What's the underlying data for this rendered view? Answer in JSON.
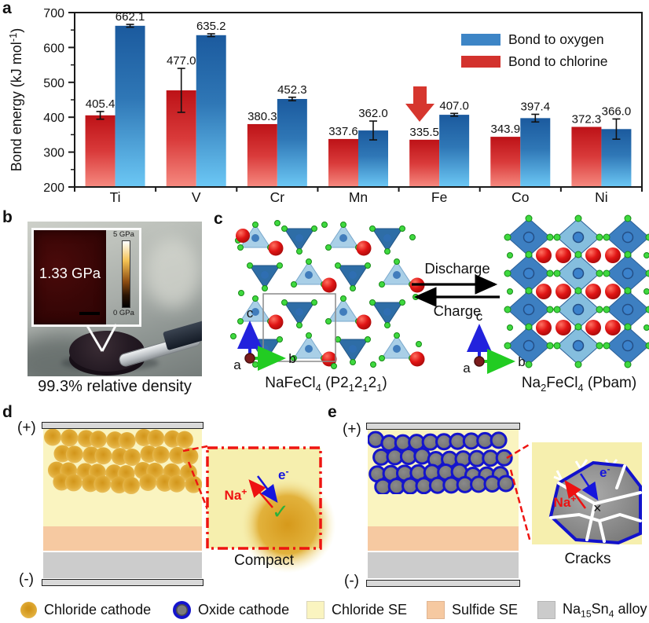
{
  "panels": {
    "a": {
      "label": "a"
    },
    "b": {
      "label": "b",
      "inset_value": "1.33 GPa",
      "scale_max": "5 GPa",
      "scale_min": "0 GPa",
      "caption": "99.3% relative density"
    },
    "c": {
      "label": "c",
      "left_formula": "NaFeCl_{4} (P2_{1}2_{1}2_{1})",
      "right_formula": "Na_{2}FeCl_{4} (Pbam)",
      "discharge_label": "Discharge",
      "charge_label": "Charge",
      "axis_a": "a",
      "axis_b": "b",
      "axis_c": "c"
    },
    "d": {
      "label": "d",
      "plus": "(+)",
      "minus": "(-)",
      "na_label": "Na^{+}",
      "e_label": "e^{-}",
      "check": "✓",
      "caption": "Compact"
    },
    "e": {
      "label": "e",
      "plus": "(+)",
      "minus": "(-)",
      "na_label": "Na^{+}",
      "e_label": "e^{-}",
      "cross": "×",
      "caption": "Cracks"
    }
  },
  "chart_data": {
    "type": "bar",
    "title": "",
    "ylabel": "Bond energy (kJ mol^{-1})",
    "ylim": [
      200,
      700
    ],
    "ytick_major": 100,
    "ytick_minor": 50,
    "grid": false,
    "legend_position": "top-right",
    "categories": [
      "Ti",
      "V",
      "Cr",
      "Mn",
      "Fe",
      "Co",
      "Ni"
    ],
    "series": [
      {
        "name": "Bond to chlorine",
        "values": [
          "405.4",
          "477.0",
          "380.3",
          "337.6",
          "335.5",
          "343.9",
          "372.3"
        ],
        "errors": [
          11,
          63,
          0,
          0,
          0,
          0,
          0
        ]
      },
      {
        "name": "Bond to oxygen",
        "values": [
          "662.1",
          "635.2",
          "452.3",
          "362.0",
          "407.0",
          "397.4",
          "366.0"
        ],
        "errors": [
          4,
          4,
          5,
          27,
          4,
          11,
          29
        ]
      }
    ],
    "legend": [
      "Bond to oxygen",
      "Bond to chlorine"
    ],
    "annotation": {
      "shape": "down-arrow",
      "target_category": "Fe",
      "target_series": "Bond to chlorine"
    },
    "colors": {
      "chlorine_top": "#bd1217",
      "chlorine_mid": "#d93a3a",
      "chlorine_bottom": "#f68a80",
      "oxygen_top": "#1b5a9e",
      "oxygen_mid": "#2f77b6",
      "oxygen_bottom": "#6cc8f5",
      "legend_oxygen": "#3d85c6",
      "legend_chlorine": "#d3322d",
      "arrow": "#d6362e",
      "axis": "#1a1a1a"
    }
  },
  "colors": {
    "chloride_se": "#faf4c0",
    "sulfide_se": "#f6c9a1",
    "alloy": "#cccccc",
    "electrode": "#d9d9d9",
    "inset_bg": "#f6efae",
    "inset_border": "#ee1511",
    "na_red": "#ee1111",
    "e_blue": "#1515dd",
    "check_green": "#2ab13a",
    "chloride_core": "#d2951a",
    "chloride_mid": "#e0ac38",
    "chloride_rim": "#efcb75",
    "oxide_fill_light": "#8a8a8a",
    "oxide_fill_dark": "#6e6e6e",
    "oxide_ring": "#1414cc",
    "crystal": {
      "tetra_light": "#a9cfe7",
      "tetra_dark": "#2e6da6",
      "octa_dark": "#3d7fc1",
      "octa_light": "#85bede",
      "na_red": "#e01414",
      "cl_green": "#3fd93f",
      "fe_blue": "#2f6fb4",
      "axis_c_blue": "#2222dd",
      "axis_b_green": "#22cc22",
      "axis_a_red": "#7b1c1c"
    }
  },
  "bottom_legend": [
    {
      "swatch": "chloride-cathode",
      "label": "Chloride cathode"
    },
    {
      "swatch": "oxide-cathode",
      "label": "Oxide cathode"
    },
    {
      "swatch": "chloride-se",
      "label": "Chloride SE"
    },
    {
      "swatch": "sulfide-se",
      "label": "Sulfide SE"
    },
    {
      "swatch": "alloy",
      "label": "Na_{15}Sn_{4} alloy"
    }
  ]
}
